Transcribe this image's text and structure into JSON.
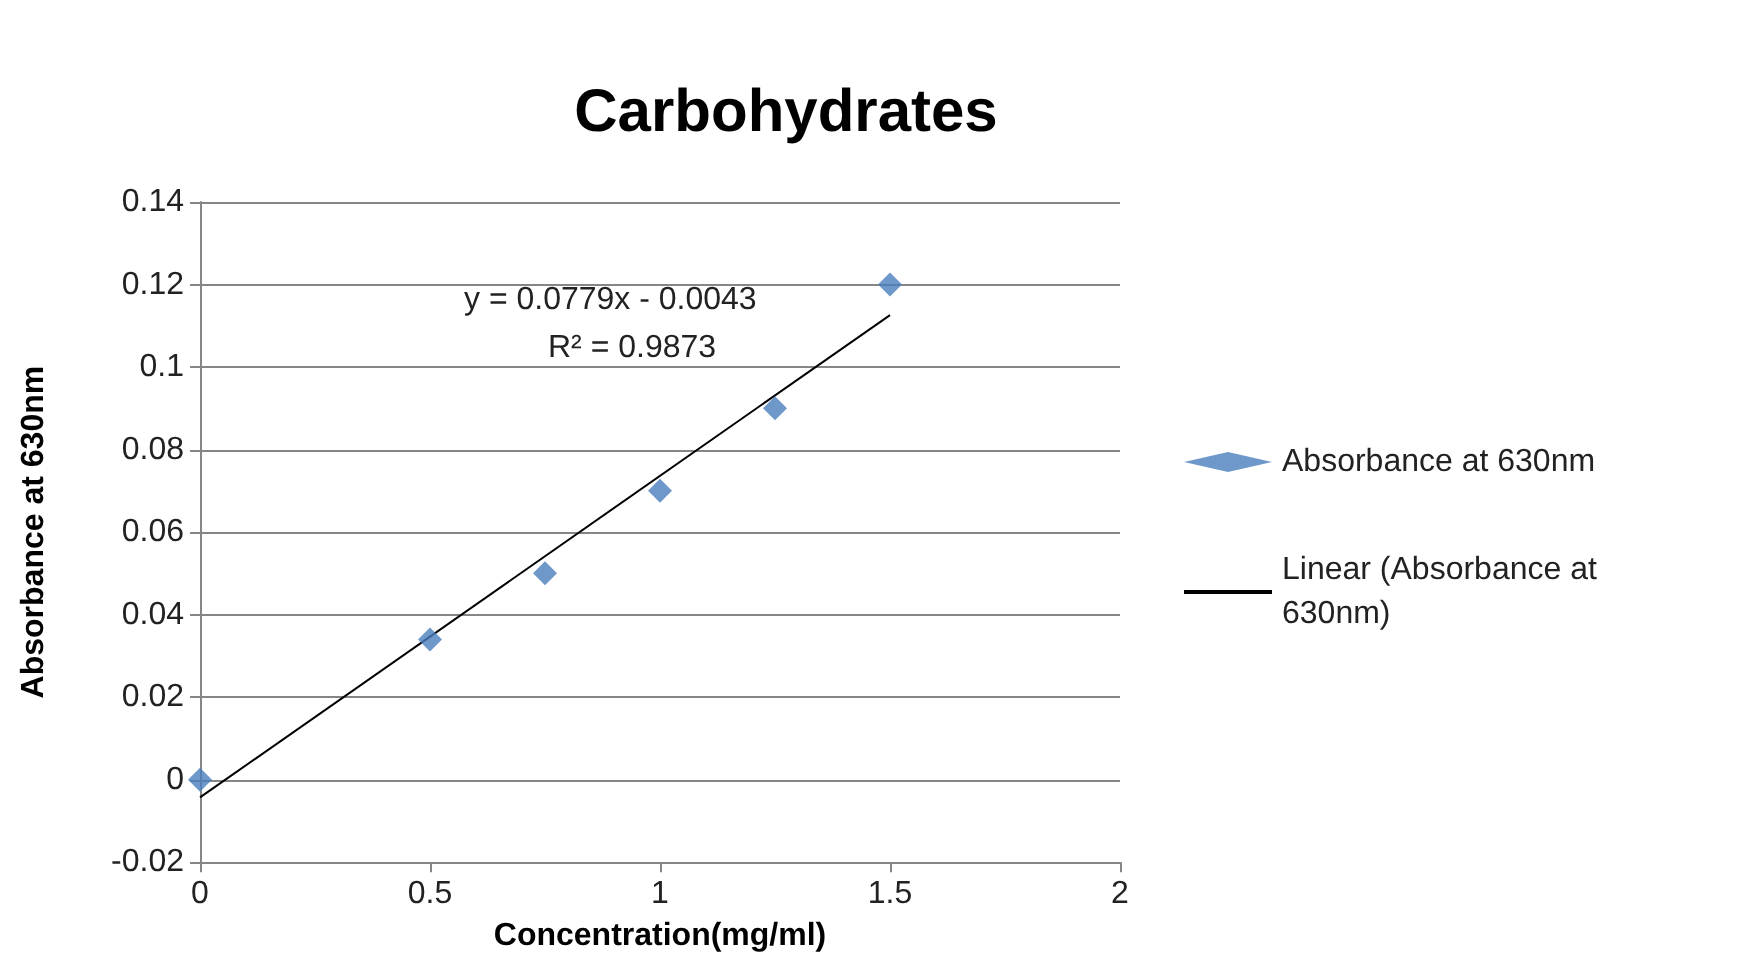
{
  "chart_data": {
    "type": "scatter",
    "title": "Carbohydrates",
    "xlabel": "Concentration(mg/ml)",
    "ylabel": "Absorbance at 630nm",
    "x": [
      0,
      0.5,
      0.75,
      1,
      1.25,
      1.5
    ],
    "series": [
      {
        "name": "Absorbance at 630nm",
        "color": "#4a7ebb",
        "marker": "diamond",
        "values": [
          0,
          0.034,
          0.05,
          0.07,
          0.09,
          0.12
        ]
      },
      {
        "name": "Linear (Absorbance at 630nm)",
        "type": "line",
        "color": "#000000",
        "marker": "none",
        "line_style": "solid",
        "x": [
          0,
          1.5
        ],
        "values": [
          -0.0043,
          0.1126
        ]
      }
    ],
    "annotations": [
      "y = 0.0779x - 0.0043",
      "R² = 0.9873"
    ],
    "xlim": [
      0,
      2
    ],
    "xticks": [
      0,
      0.5,
      1,
      1.5,
      2
    ],
    "ylim": [
      -0.02,
      0.14
    ],
    "yticks": [
      -0.02,
      0,
      0.02,
      0.04,
      0.06,
      0.08,
      0.1,
      0.12,
      0.14
    ],
    "grid": "y",
    "legend": "right"
  }
}
